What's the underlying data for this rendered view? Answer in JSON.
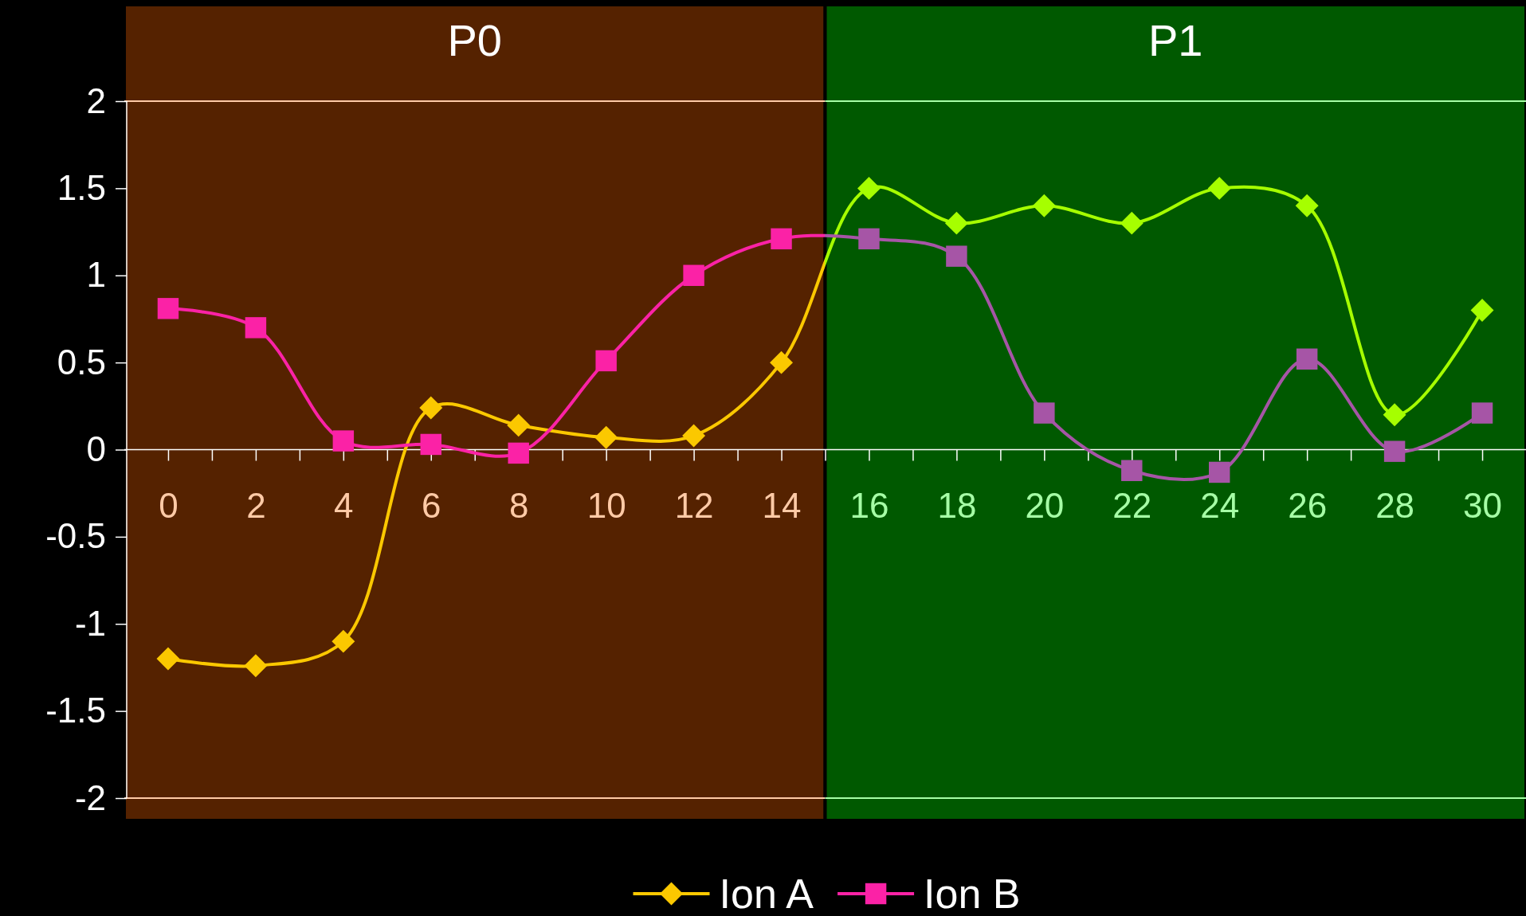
{
  "chart_data": {
    "type": "line",
    "x": [
      0,
      2,
      4,
      6,
      8,
      10,
      12,
      14,
      16,
      18,
      20,
      22,
      24,
      26,
      28,
      30
    ],
    "series": [
      {
        "name": "Ion A",
        "color": "#fbc800",
        "marker": "diamond",
        "values": [
          -1.2,
          -1.24,
          -1.1,
          0.24,
          0.14,
          0.07,
          0.08,
          0.5,
          1.5,
          1.3,
          1.4,
          1.3,
          1.5,
          1.4,
          0.2,
          0.8
        ],
        "colors": [
          "#fbc800",
          "#fbc800",
          "#fbc800",
          "#fbc800",
          "#fbc800",
          "#fbc800",
          "#fbc800",
          "#fbc800",
          "#a6ff00",
          "#a6ff00",
          "#a6ff00",
          "#a6ff00",
          "#a6ff00",
          "#a6ff00",
          "#a6ff00",
          "#a6ff00"
        ]
      },
      {
        "name": "Ion B",
        "color": "#fb22a6",
        "marker": "square",
        "values": [
          0.81,
          0.7,
          0.05,
          0.03,
          -0.02,
          0.51,
          1.0,
          1.21,
          1.21,
          1.11,
          0.21,
          -0.12,
          -0.13,
          0.52,
          -0.01,
          0.21
        ],
        "colors": [
          "#fb22a6",
          "#fb22a6",
          "#fb22a6",
          "#fb22a6",
          "#fb22a6",
          "#fb22a6",
          "#fb22a6",
          "#fb22a6",
          "#a655a6",
          "#a655a6",
          "#a655a6",
          "#a655a6",
          "#a655a6",
          "#a655a6",
          "#a655a6",
          "#a655a6"
        ]
      }
    ],
    "xlim": [
      -1,
      31
    ],
    "ylim": [
      -2,
      2
    ],
    "xticks": [
      0,
      {
        "value": 1,
        "label": null
      },
      2,
      {
        "value": 3,
        "label": null
      },
      4,
      {
        "value": 5,
        "label": null
      },
      6,
      {
        "value": 7,
        "label": null
      },
      8,
      {
        "value": 9,
        "label": null
      },
      10,
      {
        "value": 11,
        "label": null
      },
      12,
      {
        "value": 13,
        "label": null
      },
      14,
      {
        "value": 15,
        "label": null
      },
      16,
      {
        "value": 17,
        "label": null
      },
      18,
      {
        "value": 19,
        "label": null
      },
      20,
      {
        "value": 21,
        "label": null
      },
      22,
      {
        "value": 23,
        "label": null
      },
      24,
      {
        "value": 25,
        "label": null
      },
      26,
      {
        "value": 27,
        "label": null
      },
      28,
      {
        "value": 29,
        "label": null
      },
      30
    ],
    "yticks": [
      -2,
      -1.5,
      -1,
      -0.5,
      0,
      0.5,
      1,
      1.5,
      2
    ],
    "ref_lines": [
      {
        "axis": "y",
        "value": 2,
        "label": null
      },
      {
        "axis": "y",
        "value": -2,
        "label": null
      }
    ],
    "bands": [
      {
        "axis": "x",
        "from": -1,
        "to": 15,
        "label": "P0",
        "color": "#552200"
      },
      {
        "axis": "x",
        "from": 15,
        "to": 31,
        "label": "P1",
        "color": "#005900"
      }
    ],
    "grid": false,
    "legend": "bottom",
    "line_style": "solid"
  }
}
